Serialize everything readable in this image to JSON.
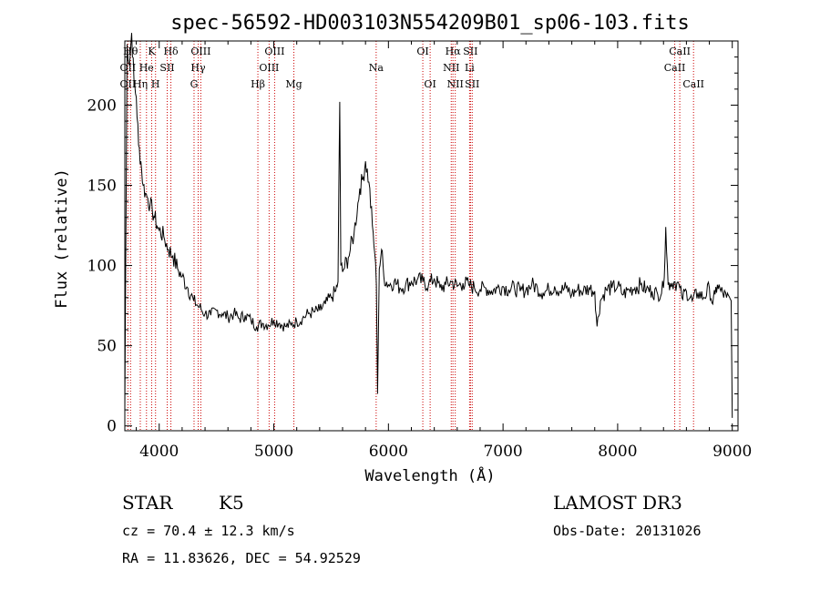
{
  "chart_data": {
    "type": "line",
    "title": "spec-56592-HD003103N554209B01_sp06-103.fits",
    "xlabel": "Wavelength (Å)",
    "ylabel": "Flux (relative)",
    "xlim": [
      3700,
      9050
    ],
    "ylim": [
      -3,
      240
    ],
    "xticks": [
      4000,
      5000,
      6000,
      7000,
      8000,
      9000
    ],
    "yticks": [
      0,
      50,
      100,
      150,
      200
    ],
    "grid": false,
    "line_color": "#000000",
    "marker_color": "#cc0000",
    "series": [
      {
        "x": [
          3700,
          3720,
          3740,
          3760,
          3780,
          3800,
          3820,
          3840,
          3860,
          3880,
          3900,
          3920,
          3940,
          3960,
          3980,
          4000,
          4040,
          4080,
          4120,
          4160,
          4200,
          4250,
          4300,
          4350,
          4400,
          4450,
          4500,
          4550,
          4600,
          4650,
          4700,
          4750,
          4800,
          4850,
          4900,
          4950,
          5000,
          5050,
          5100,
          5150,
          5200,
          5250,
          5300,
          5350,
          5400,
          5450,
          5500,
          5540,
          5560,
          5575,
          5585,
          5600,
          5650,
          5700,
          5750,
          5780,
          5800,
          5830,
          5860,
          5880,
          5895,
          5905,
          5920,
          5940,
          5960,
          6000,
          6050,
          6100,
          6150,
          6200,
          6250,
          6300,
          6350,
          6400,
          6450,
          6500,
          6550,
          6600,
          6650,
          6700,
          6750,
          6800,
          6850,
          6900,
          6950,
          7000,
          7050,
          7100,
          7150,
          7200,
          7250,
          7300,
          7350,
          7400,
          7450,
          7500,
          7550,
          7600,
          7650,
          7700,
          7750,
          7800,
          7820,
          7850,
          7900,
          7950,
          8000,
          8050,
          8100,
          8150,
          8200,
          8250,
          8300,
          8350,
          8400,
          8420,
          8440,
          8460,
          8500,
          8542,
          8560,
          8600,
          8650,
          8700,
          8750,
          8800,
          8830,
          8850,
          8870,
          8900,
          8950,
          8990,
          9000
        ],
        "y": [
          10,
          238,
          225,
          245,
          215,
          205,
          175,
          165,
          150,
          145,
          142,
          138,
          134,
          130,
          125,
          122,
          118,
          110,
          106,
          98,
          93,
          86,
          78,
          74,
          70,
          69,
          72,
          70,
          68,
          70,
          67,
          69,
          66,
          62,
          64,
          63,
          66,
          64,
          62,
          63,
          65,
          67,
          70,
          71,
          72,
          76,
          80,
          84,
          90,
          202,
          100,
          96,
          105,
          120,
          148,
          155,
          165,
          152,
          125,
          108,
          88,
          20,
          98,
          110,
          93,
          88,
          90,
          86,
          88,
          90,
          91,
          90,
          88,
          92,
          86,
          88,
          90,
          87,
          89,
          88,
          86,
          85,
          86,
          84,
          86,
          87,
          85,
          86,
          84,
          85,
          88,
          86,
          83,
          85,
          87,
          84,
          86,
          82,
          85,
          84,
          86,
          84,
          62,
          78,
          85,
          86,
          87,
          82,
          85,
          86,
          88,
          85,
          84,
          82,
          86,
          124,
          88,
          89,
          90,
          86,
          80,
          84,
          78,
          83,
          80,
          86,
          76,
          82,
          88,
          84,
          80,
          78,
          5
        ]
      }
    ],
    "markers": [
      {
        "x": 3727,
        "top": "OII",
        "bottom": "OII"
      },
      {
        "x": 3750,
        "top": "Hθ",
        "bottom": ""
      },
      {
        "x": 3835,
        "top": "",
        "bottom": "Hη"
      },
      {
        "x": 3889,
        "top": "He",
        "bottom": ""
      },
      {
        "x": 3934,
        "top": "K",
        "bottom": ""
      },
      {
        "x": 3968,
        "top": "",
        "bottom": "H"
      },
      {
        "x": 4070,
        "top": "SII",
        "bottom": ""
      },
      {
        "x": 4102,
        "top": "Hδ",
        "bottom": ""
      },
      {
        "x": 4304,
        "top": "",
        "bottom": "G"
      },
      {
        "x": 4340,
        "top": "Hγ",
        "bottom": ""
      },
      {
        "x": 4363,
        "top": "OIII",
        "bottom": ""
      },
      {
        "x": 4861,
        "top": "",
        "bottom": "Hβ"
      },
      {
        "x": 4959,
        "top": "OIII",
        "bottom": ""
      },
      {
        "x": 5007,
        "top": "OIII",
        "bottom": ""
      },
      {
        "x": 5175,
        "top": "",
        "bottom": "Mg"
      },
      {
        "x": 5893,
        "top": "Na",
        "bottom": ""
      },
      {
        "x": 6300,
        "top": "OI",
        "bottom": ""
      },
      {
        "x": 6364,
        "top": "",
        "bottom": "OI"
      },
      {
        "x": 6548,
        "top": "NII",
        "bottom": ""
      },
      {
        "x": 6563,
        "top": "Hα",
        "bottom": ""
      },
      {
        "x": 6583,
        "top": "",
        "bottom": "NII"
      },
      {
        "x": 6708,
        "top": "Li",
        "bottom": ""
      },
      {
        "x": 6716,
        "top": "SII",
        "bottom": ""
      },
      {
        "x": 6731,
        "top": "",
        "bottom": "SII"
      },
      {
        "x": 8498,
        "top": "CaII",
        "bottom": ""
      },
      {
        "x": 8542,
        "top": "CaII",
        "bottom": ""
      },
      {
        "x": 8662,
        "top": "",
        "bottom": "CaII"
      }
    ],
    "label_rows": {
      "row1": [
        {
          "x": 3750,
          "t": "Hθ"
        },
        {
          "x": 3934,
          "t": "K"
        },
        {
          "x": 4102,
          "t": "Hδ"
        },
        {
          "x": 4363,
          "t": "OIII"
        },
        {
          "x": 5007,
          "t": "OIII"
        },
        {
          "x": 6300,
          "t": "OI"
        },
        {
          "x": 6563,
          "t": "Hα"
        },
        {
          "x": 6716,
          "t": "SII"
        },
        {
          "x": 8542,
          "t": "CaII"
        }
      ],
      "row2": [
        {
          "x": 3727,
          "t": "OII"
        },
        {
          "x": 3889,
          "t": "He"
        },
        {
          "x": 4070,
          "t": "SII"
        },
        {
          "x": 4340,
          "t": "Hγ"
        },
        {
          "x": 4959,
          "t": "OIII"
        },
        {
          "x": 5893,
          "t": "Na"
        },
        {
          "x": 6548,
          "t": "NII"
        },
        {
          "x": 6708,
          "t": "Li"
        },
        {
          "x": 8498,
          "t": "CaII"
        }
      ],
      "row3": [
        {
          "x": 3727,
          "t": "OII"
        },
        {
          "x": 3835,
          "t": "Hη"
        },
        {
          "x": 3968,
          "t": "H"
        },
        {
          "x": 4304,
          "t": "G"
        },
        {
          "x": 4861,
          "t": "Hβ"
        },
        {
          "x": 5175,
          "t": "Mg"
        },
        {
          "x": 6364,
          "t": "OI"
        },
        {
          "x": 6583,
          "t": "NII"
        },
        {
          "x": 6731,
          "t": "SII"
        },
        {
          "x": 8662,
          "t": "CaII"
        }
      ]
    }
  },
  "info": {
    "class": "STAR",
    "subclass": "K5",
    "survey": "LAMOST DR3",
    "cz": "cz = 70.4 ± 12.3 km/s",
    "obs_date": "Obs-Date: 20131026",
    "radec": "RA =  11.83626, DEC =  54.92529"
  }
}
